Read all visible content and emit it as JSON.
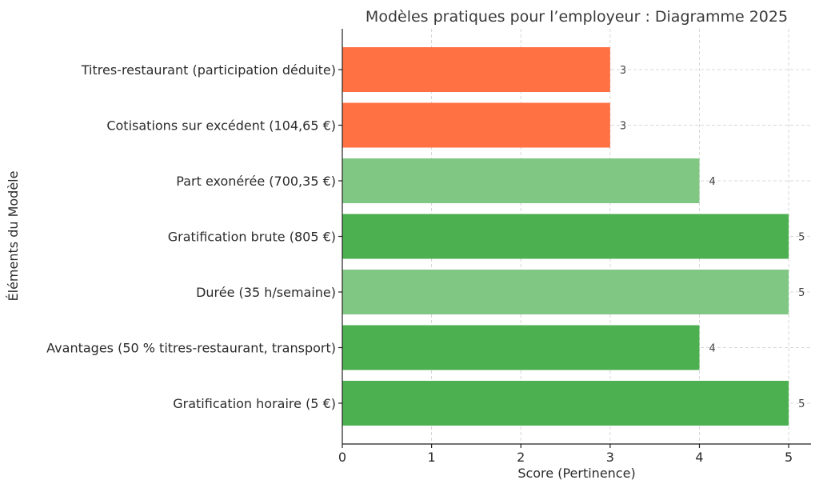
{
  "chart_data": {
    "type": "bar",
    "orientation": "horizontal",
    "title": "Modèles pratiques pour l’employeur : Diagramme 2025",
    "xlabel": "Score (Pertinence)",
    "ylabel": "Éléments du Modèle",
    "xlim": [
      0,
      5.25
    ],
    "xticks": [
      "0",
      "1",
      "2",
      "3",
      "4",
      "5"
    ],
    "grid": true,
    "categories": [
      "Titres-restaurant (participation déduite)",
      "Cotisations sur excédent (104,65 €)",
      "Part exonérée (700,35 €)",
      "Gratification brute (805 €)",
      "Durée (35 h/semaine)",
      "Avantages (50 % titres-restaurant, transport)",
      "Gratification horaire (5 €)"
    ],
    "values": [
      3,
      3,
      4,
      5,
      5,
      4,
      5
    ],
    "value_labels": [
      "3",
      "3",
      "4",
      "5",
      "5",
      "4",
      "5"
    ],
    "colors": [
      "#ff7043",
      "#ff7043",
      "#81c784",
      "#4caf50",
      "#81c784",
      "#4caf50",
      "#4caf50"
    ]
  }
}
